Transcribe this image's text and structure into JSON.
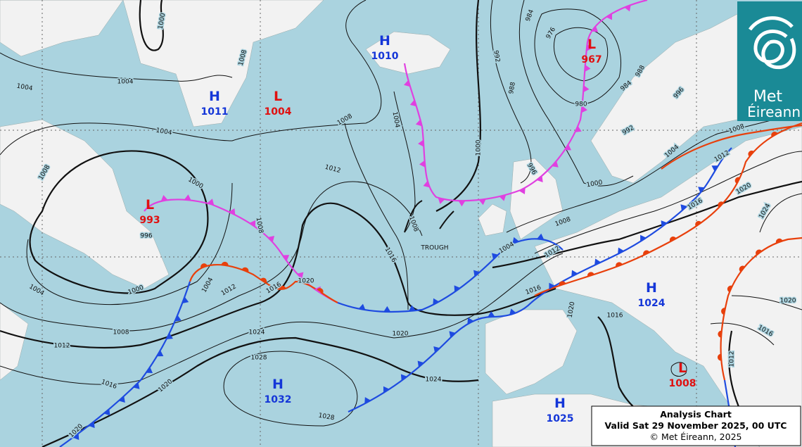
{
  "title_box": {
    "title": "Analysis Chart",
    "valid": "Valid Sat 29 November 2025, 00 UTC",
    "copyright": "© Met Éireann, 2025"
  },
  "logo": {
    "line1": "Met",
    "line2": "Éireann"
  },
  "annotations": [
    "TROUGH"
  ],
  "pressure_centers": [
    {
      "kind": "H",
      "value": 1011
    },
    {
      "kind": "L",
      "value": 1004
    },
    {
      "kind": "H",
      "value": 1010
    },
    {
      "kind": "L",
      "value": 967
    },
    {
      "kind": "L",
      "value": 993
    },
    {
      "kind": "H",
      "value": 1032
    },
    {
      "kind": "H",
      "value": 1024
    },
    {
      "kind": "H",
      "value": 1025
    },
    {
      "kind": "L",
      "value": 1008
    }
  ],
  "isobar_labels": [
    1000,
    1008,
    1004,
    1004,
    1004,
    1008,
    1000,
    996,
    1008,
    1004,
    1008,
    1012,
    1016,
    1008,
    1000,
    992,
    988,
    984,
    976,
    980,
    984,
    988,
    992,
    996,
    996,
    1000,
    1004,
    1008,
    1008,
    1012,
    1016,
    1020,
    1024,
    1020,
    1016,
    1012,
    1020,
    1016,
    1016,
    1012,
    1004,
    1020,
    1016,
    1012,
    1004,
    1000,
    1004,
    1008,
    1012,
    1016,
    1020,
    1020,
    1024,
    1028,
    1024,
    1028,
    1020
  ]
}
